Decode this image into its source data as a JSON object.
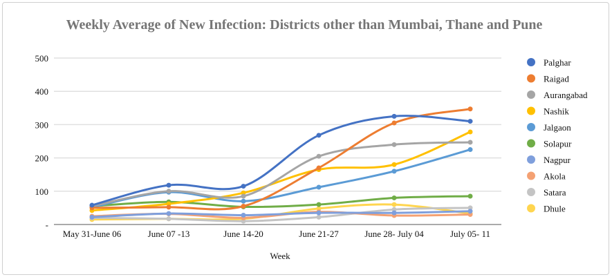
{
  "chart_data": {
    "type": "line",
    "title": "Weekly Average of New Infection: Districts other than Mumbai, Thane and Pune",
    "xlabel": "Week",
    "ylabel": "",
    "ylim": [
      0,
      500
    ],
    "yticks": [
      0,
      100,
      200,
      300,
      400,
      500
    ],
    "ytick_labels": [
      "-",
      "100",
      "200",
      "300",
      "400",
      "500"
    ],
    "grid": true,
    "smooth": true,
    "legend": "right",
    "categories": [
      "May 31-June 06",
      "June 07 -13",
      "June 14-20",
      "June 21-27",
      "June 28- July 04",
      "July 05- 11"
    ],
    "series": [
      {
        "name": "Palghar",
        "color": "#4472c4",
        "values": [
          58,
          118,
          115,
          268,
          325,
          310
        ]
      },
      {
        "name": "Raigad",
        "color": "#ed7d31",
        "values": [
          50,
          52,
          55,
          170,
          305,
          347
        ]
      },
      {
        "name": "Aurangabad",
        "color": "#a5a5a5",
        "values": [
          55,
          100,
          85,
          205,
          240,
          247
        ]
      },
      {
        "name": "Nashik",
        "color": "#ffc000",
        "values": [
          42,
          62,
          95,
          165,
          180,
          278
        ]
      },
      {
        "name": "Jalgaon",
        "color": "#5b9bd5",
        "values": [
          52,
          97,
          70,
          112,
          160,
          225
        ]
      },
      {
        "name": "Solapur",
        "color": "#70ad47",
        "values": [
          55,
          68,
          53,
          60,
          80,
          85
        ]
      },
      {
        "name": "Nagpur",
        "color": "#7f9fdc",
        "values": [
          22,
          33,
          28,
          35,
          35,
          40
        ]
      },
      {
        "name": "Akola",
        "color": "#f4a173",
        "values": [
          25,
          32,
          20,
          38,
          27,
          30
        ]
      },
      {
        "name": "Satara",
        "color": "#c4c4c4",
        "values": [
          20,
          17,
          10,
          22,
          45,
          50
        ]
      },
      {
        "name": "Dhule",
        "color": "#ffd54f",
        "values": [
          15,
          17,
          17,
          48,
          60,
          33
        ]
      }
    ]
  }
}
